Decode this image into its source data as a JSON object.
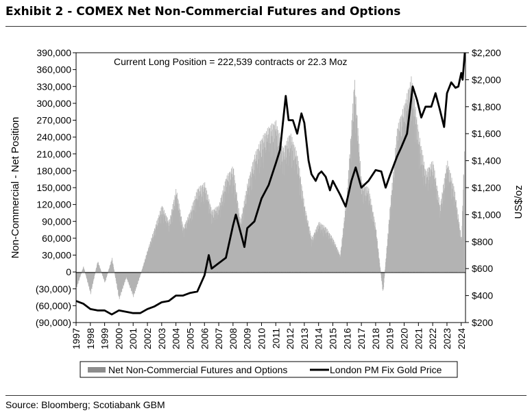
{
  "title": "Exhibit 2 - COMEX Net Non-Commercial Futures and Options",
  "source": "Source: Bloomberg; Scotiabank GBM",
  "chart_data": {
    "type": "bar+line",
    "title": "Exhibit 2 - COMEX Net Non-Commercial Futures and Options",
    "annotation": "Current Long Position = 222,539 contracts or 22.3 Moz",
    "ylabel_left": "Non-Commercial - Net Position",
    "ylabel_right": "US$/oz",
    "ylim_left": [
      -90000,
      390000
    ],
    "ylim_right": [
      200,
      2200
    ],
    "xlim": [
      1997.0,
      2024.3
    ],
    "yticks_left": [
      "390,000",
      "360,000",
      "330,000",
      "300,000",
      "270,000",
      "240,000",
      "210,000",
      "180,000",
      "150,000",
      "120,000",
      "90,000",
      "60,000",
      "30,000",
      "0",
      "(30,000)",
      "(60,000)",
      "(90,000)"
    ],
    "yticks_right": [
      "$2,200",
      "$2,000",
      "$1,800",
      "$1,600",
      "$1,400",
      "$1,200",
      "$1,000",
      "$800",
      "$600",
      "$400",
      "$200"
    ],
    "xticks": [
      "1997",
      "1998",
      "1999",
      "2000",
      "2001",
      "2002",
      "2003",
      "2004",
      "2005",
      "2006",
      "2007",
      "2008",
      "2009",
      "2010",
      "2011",
      "2012",
      "2013",
      "2014",
      "2015",
      "2016",
      "2017",
      "2018",
      "2019",
      "2020",
      "2021",
      "2022",
      "2023",
      "2024"
    ],
    "legend": [
      "Net Non-Commercial Futures and Options",
      "London PM Fix Gold Price"
    ],
    "legend_position": "bottom-center",
    "series": [
      {
        "name": "Net Non-Commercial Futures and Options",
        "kind": "bar",
        "color": "#b3b3b3",
        "x": [
          1997.0,
          1997.5,
          1998.0,
          1998.5,
          1999.0,
          1999.5,
          2000.0,
          2000.5,
          2001.0,
          2001.5,
          2002.0,
          2002.5,
          2003.0,
          2003.5,
          2004.0,
          2004.5,
          2005.0,
          2005.5,
          2006.0,
          2006.5,
          2007.0,
          2007.5,
          2008.0,
          2008.5,
          2009.0,
          2009.5,
          2010.0,
          2010.5,
          2011.0,
          2011.5,
          2012.0,
          2012.5,
          2013.0,
          2013.5,
          2014.0,
          2014.5,
          2015.0,
          2015.5,
          2016.0,
          2016.5,
          2017.0,
          2017.5,
          2018.0,
          2018.5,
          2019.0,
          2019.5,
          2020.0,
          2020.5,
          2021.0,
          2021.5,
          2022.0,
          2022.5,
          2023.0,
          2023.5,
          2024.0,
          2024.2
        ],
        "values": [
          -30000,
          10000,
          -40000,
          20000,
          -20000,
          25000,
          -50000,
          -10000,
          -45000,
          -5000,
          40000,
          80000,
          120000,
          90000,
          150000,
          80000,
          110000,
          150000,
          160000,
          110000,
          120000,
          170000,
          190000,
          90000,
          160000,
          210000,
          240000,
          260000,
          270000,
          220000,
          250000,
          210000,
          120000,
          60000,
          90000,
          80000,
          60000,
          30000,
          150000,
          350000,
          160000,
          150000,
          80000,
          -40000,
          120000,
          260000,
          300000,
          350000,
          250000,
          180000,
          200000,
          120000,
          200000,
          150000,
          60000,
          222539
        ]
      },
      {
        "name": "London PM Fix Gold Price",
        "kind": "line",
        "color": "#000000",
        "x": [
          1997.0,
          1997.5,
          1998.0,
          1998.5,
          1999.0,
          1999.5,
          2000.0,
          2000.5,
          2001.0,
          2001.5,
          2002.0,
          2002.5,
          2003.0,
          2003.5,
          2004.0,
          2004.5,
          2005.0,
          2005.5,
          2006.0,
          2006.3,
          2006.5,
          2007.0,
          2007.5,
          2008.0,
          2008.2,
          2008.5,
          2008.8,
          2009.0,
          2009.5,
          2010.0,
          2010.5,
          2011.0,
          2011.3,
          2011.7,
          2011.9,
          2012.2,
          2012.5,
          2012.8,
          2013.0,
          2013.3,
          2013.5,
          2013.8,
          2014.0,
          2014.2,
          2014.5,
          2014.8,
          2015.0,
          2015.5,
          2015.9,
          2016.3,
          2016.6,
          2017.0,
          2017.5,
          2018.0,
          2018.4,
          2018.7,
          2019.0,
          2019.5,
          2019.8,
          2020.2,
          2020.6,
          2020.9,
          2021.2,
          2021.5,
          2021.9,
          2022.2,
          2022.5,
          2022.8,
          2023.0,
          2023.3,
          2023.6,
          2023.8,
          2024.0,
          2024.1,
          2024.25
        ],
        "values": [
          360,
          340,
          300,
          290,
          290,
          260,
          290,
          280,
          270,
          270,
          300,
          320,
          350,
          360,
          400,
          400,
          420,
          430,
          550,
          700,
          600,
          640,
          680,
          920,
          1000,
          880,
          760,
          900,
          950,
          1120,
          1220,
          1380,
          1480,
          1880,
          1700,
          1700,
          1600,
          1750,
          1680,
          1400,
          1300,
          1250,
          1300,
          1320,
          1280,
          1180,
          1250,
          1150,
          1060,
          1250,
          1350,
          1200,
          1250,
          1330,
          1320,
          1200,
          1290,
          1430,
          1500,
          1600,
          1950,
          1850,
          1720,
          1800,
          1800,
          1900,
          1780,
          1650,
          1900,
          1980,
          1940,
          1950,
          2050,
          2000,
          2200
        ]
      }
    ]
  }
}
